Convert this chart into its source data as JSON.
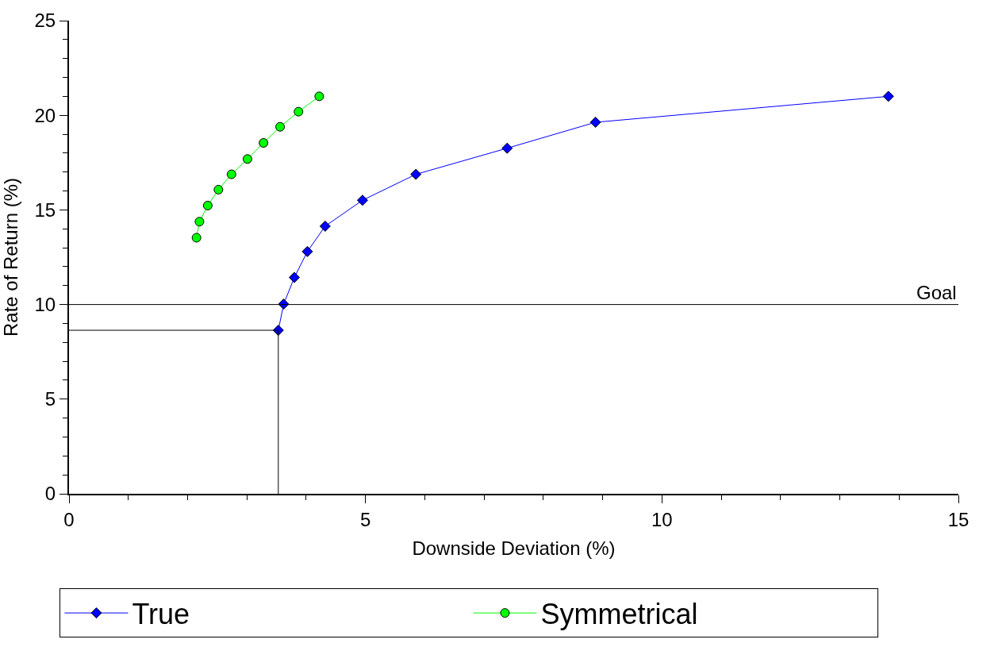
{
  "chart_data": {
    "type": "line",
    "xlabel": "Downside Deviation (%)",
    "ylabel": "Rate of Return (%)",
    "xlim": [
      0,
      15
    ],
    "xticks": [
      0,
      5,
      10,
      15
    ],
    "ylim": [
      0,
      25
    ],
    "yticks": [
      0,
      5,
      10,
      15,
      20,
      25
    ],
    "legend": "bottom",
    "series": [
      {
        "name": "True",
        "color": "#0000ff",
        "marker": "diamond",
        "x": [
          3.53,
          3.62,
          3.8,
          4.02,
          4.32,
          4.95,
          5.85,
          7.39,
          8.88,
          13.82
        ],
        "values": [
          8.64,
          10.02,
          11.43,
          12.8,
          14.14,
          15.51,
          16.88,
          18.26,
          19.63,
          21.0
        ]
      },
      {
        "name": "Symmetrical",
        "color": "#00ff00",
        "marker": "circle",
        "x": [
          2.15,
          2.2,
          2.34,
          2.52,
          2.74,
          3.01,
          3.28,
          3.56,
          3.87,
          4.22
        ],
        "values": [
          13.53,
          14.38,
          15.23,
          16.07,
          16.88,
          17.69,
          18.54,
          19.39,
          20.19,
          21.0
        ]
      }
    ],
    "ref_lines": [
      {
        "axis": "y",
        "value": 10,
        "label": "Goal"
      },
      {
        "axis": "y",
        "value": 8.64,
        "label": null
      },
      {
        "axis": "x",
        "value": 3.53,
        "label": null
      }
    ]
  }
}
